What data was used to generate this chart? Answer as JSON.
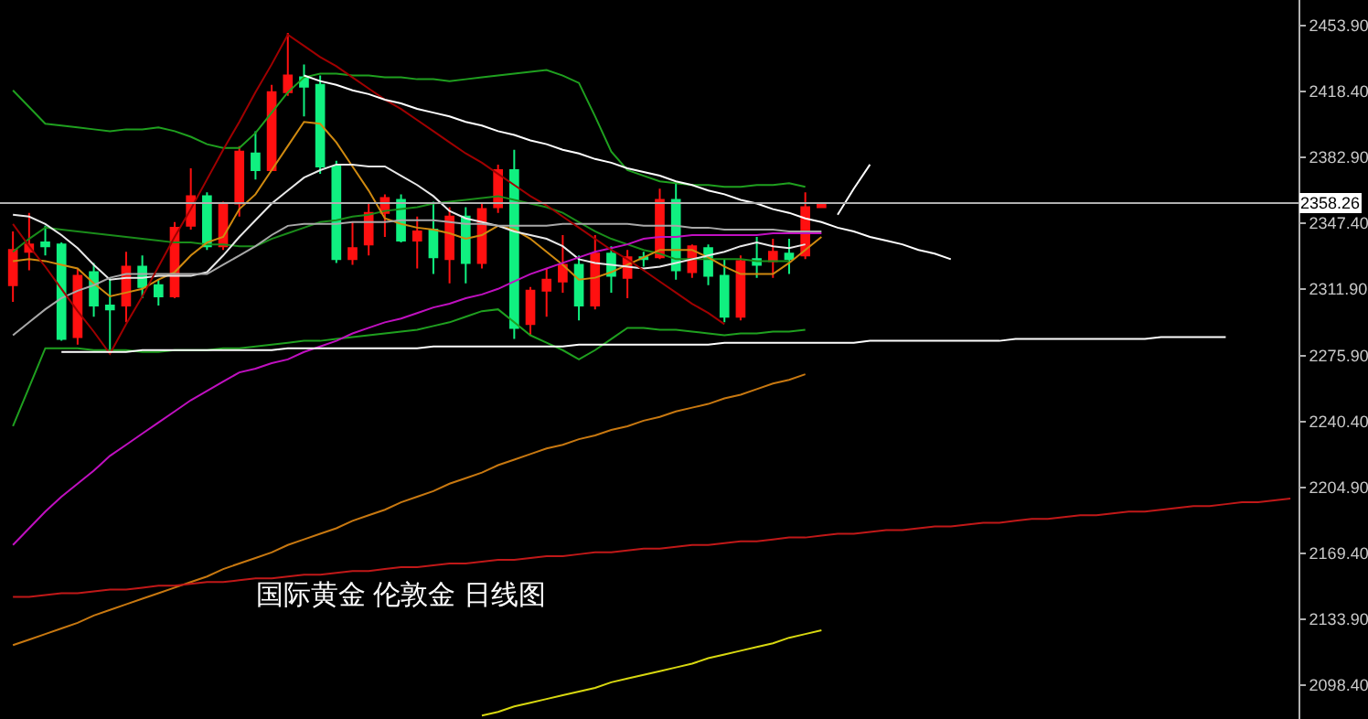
{
  "chart_data": {
    "type": "candlestick",
    "title": "国际黄金 伦敦金 日线图",
    "categories": [
      null,
      null,
      null,
      null,
      null,
      null,
      null,
      null,
      null,
      null,
      null,
      null,
      null,
      null,
      null,
      null,
      null,
      null,
      null,
      null,
      null,
      null,
      null,
      null,
      null,
      null,
      null,
      null,
      null,
      null,
      null,
      null,
      null,
      null,
      null,
      null,
      null,
      null,
      null,
      null,
      null,
      null,
      null,
      null,
      null,
      null,
      null,
      null,
      null,
      null,
      null,
      null,
      null,
      null,
      null,
      null,
      null,
      null,
      null,
      null,
      null,
      null,
      null,
      null,
      null,
      null,
      null,
      null,
      null,
      null,
      null,
      null,
      null,
      null,
      null,
      null,
      null,
      null,
      null,
      null
    ],
    "ohlc": [
      [
        2314,
        2343,
        2305,
        2333
      ],
      [
        2332,
        2353,
        2322,
        2336
      ],
      [
        2337,
        2346,
        2330,
        2335
      ],
      [
        2336,
        2337,
        2284,
        2285
      ],
      [
        2286,
        2323,
        2282,
        2319
      ],
      [
        2321,
        2326,
        2297,
        2303
      ],
      [
        2303,
        2318,
        2279,
        2301
      ],
      [
        2303,
        2332,
        2294,
        2324
      ],
      [
        2324,
        2330,
        2307,
        2313
      ],
      [
        2314,
        2317,
        2303,
        2308
      ],
      [
        2308,
        2348,
        2307,
        2345
      ],
      [
        2346,
        2377,
        2344,
        2362
      ],
      [
        2362,
        2364,
        2333,
        2335
      ],
      [
        2335,
        2359,
        2333,
        2358
      ],
      [
        2358,
        2389,
        2351,
        2386
      ],
      [
        2385,
        2397,
        2371,
        2376
      ],
      [
        2376,
        2422,
        2376,
        2418
      ],
      [
        2418,
        2450,
        2416,
        2427
      ],
      [
        2426,
        2433,
        2405,
        2421
      ],
      [
        2422,
        2427,
        2374,
        2378
      ],
      [
        2378,
        2381,
        2326,
        2328
      ],
      [
        2328,
        2348,
        2325,
        2334
      ],
      [
        2336,
        2358,
        2330,
        2353
      ],
      [
        2353,
        2363,
        2340,
        2361
      ],
      [
        2360,
        2363,
        2337,
        2338
      ],
      [
        2338,
        2351,
        2323,
        2343
      ],
      [
        2344,
        2359,
        2320,
        2329
      ],
      [
        2328,
        2356,
        2315,
        2351
      ],
      [
        2351,
        2356,
        2315,
        2326
      ],
      [
        2326,
        2358,
        2323,
        2355
      ],
      [
        2356,
        2379,
        2353,
        2376
      ],
      [
        2376,
        2387,
        2285,
        2291
      ],
      [
        2293,
        2313,
        2287,
        2311
      ],
      [
        2311,
        2323,
        2297,
        2317
      ],
      [
        2316,
        2341,
        2310,
        2325
      ],
      [
        2325,
        2330,
        2295,
        2303
      ],
      [
        2303,
        2341,
        2301,
        2331
      ],
      [
        2331,
        2335,
        2310,
        2319
      ],
      [
        2318,
        2333,
        2307,
        2329
      ],
      [
        2329,
        2332,
        2324,
        2328
      ],
      [
        2329,
        2366,
        2328,
        2360
      ],
      [
        2360,
        2369,
        2317,
        2322
      ],
      [
        2321,
        2336,
        2318,
        2335
      ],
      [
        2334,
        2336,
        2314,
        2319
      ],
      [
        2319,
        2328,
        2294,
        2297
      ],
      [
        2297,
        2330,
        2295,
        2327
      ],
      [
        2328,
        2340,
        2318,
        2325
      ],
      [
        2327,
        2339,
        2318,
        2332
      ],
      [
        2331,
        2339,
        2320,
        2328
      ],
      [
        2330,
        2364,
        2328,
        2356
      ],
      [
        2356,
        2358,
        2356,
        2358
      ],
      null,
      null,
      null,
      null,
      null,
      null,
      null,
      null,
      null,
      null,
      null,
      null,
      null,
      null,
      null,
      null,
      null,
      null,
      null,
      null,
      null,
      null,
      null,
      null,
      null,
      null,
      null,
      null,
      null
    ],
    "colors": [
      "#ff1010",
      "#ff1010",
      "#10f080",
      "#10f080",
      "#ff1010",
      "#10f080",
      "#10f080",
      "#ff1010",
      "#10f080",
      "#10f080",
      "#ff1010",
      "#ff1010",
      "#10f080",
      "#ff1010",
      "#ff1010",
      "#10f080",
      "#ff1010",
      "#ff1010",
      "#10f080",
      "#10f080",
      "#10f080",
      "#ff1010",
      "#ff1010",
      "#ff1010",
      "#10f080",
      "#ff1010",
      "#10f080",
      "#ff1010",
      "#10f080",
      "#ff1010",
      "#ff1010",
      "#10f080",
      "#ff1010",
      "#ff1010",
      "#ff1010",
      "#10f080",
      "#ff1010",
      "#10f080",
      "#ff1010",
      "#10f080",
      "#ff1010",
      "#10f080",
      "#ff1010",
      "#10f080",
      "#10f080",
      "#ff1010",
      "#10f080",
      "#ff1010",
      "#10f080",
      "#ff1010",
      "#ff1010",
      null,
      null,
      null,
      null,
      null,
      null,
      null,
      null,
      null,
      null,
      null,
      null,
      null,
      null,
      null,
      null,
      null,
      null,
      null,
      null,
      null,
      null,
      null,
      null,
      null,
      null,
      null,
      null,
      null
    ],
    "series": [
      {
        "type": "line",
        "color": "#1fa01f",
        "values": [
          2419,
          2410,
          2401,
          2400,
          2399,
          2398,
          2397,
          2398,
          2398,
          2399,
          2397,
          2394,
          2390,
          2388,
          2388,
          2396,
          2407,
          2418,
          2426,
          2428,
          2428,
          2427,
          2427,
          2426,
          2426,
          2425,
          2425,
          2424,
          2425,
          2426,
          2427,
          2428,
          2429,
          2430,
          2427,
          2423,
          2405,
          2386,
          2376,
          2373,
          2370,
          2369,
          2368,
          2368,
          2367,
          2367,
          2368,
          2368,
          2369,
          2367,
          null,
          null,
          null,
          null,
          null,
          null,
          null,
          null,
          null,
          null,
          null,
          null,
          null,
          null,
          null,
          null,
          null,
          null,
          null,
          null,
          null,
          null,
          null,
          null,
          null,
          null,
          null,
          null,
          null,
          null
        ]
      },
      {
        "type": "line",
        "color": "#1a8c1a",
        "values": [
          2332,
          2339,
          2345,
          2344,
          2343,
          2342,
          2341,
          2340,
          2339,
          2338,
          2337,
          2337,
          2336,
          2336,
          2335,
          2335,
          2339,
          2342,
          2345,
          2348,
          2349,
          2351,
          2352,
          2354,
          2355,
          2356,
          2358,
          2359,
          2360,
          2361,
          2362,
          2360,
          2358,
          2356,
          2353,
          2348,
          2343,
          2339,
          2336,
          2333,
          2331,
          2328,
          2328,
          2328,
          2328,
          2328,
          2327,
          2327,
          2327,
          null,
          null,
          null,
          null,
          null,
          null,
          null,
          null,
          null,
          null,
          null,
          null,
          null,
          null,
          null,
          null,
          null,
          null,
          null,
          null,
          null,
          null,
          null,
          null,
          null,
          null,
          null,
          null,
          null,
          null,
          null
        ]
      },
      {
        "type": "line",
        "color": "#1fa01f",
        "values": [
          2238,
          2259,
          2280,
          2280,
          2280,
          2279,
          2279,
          2279,
          2278,
          2278,
          2279,
          2279,
          2279,
          2280,
          2280,
          2281,
          2282,
          2283,
          2284,
          2284,
          2285,
          2286,
          2287,
          2288,
          2289,
          2290,
          2292,
          2294,
          2297,
          2300,
          2301,
          2294,
          2287,
          2283,
          2279,
          2274,
          2279,
          2285,
          2291,
          2291,
          2290,
          2290,
          2289,
          2288,
          2287,
          2288,
          2288,
          2289,
          2289,
          2290,
          null,
          null,
          null,
          null,
          null,
          null,
          null,
          null,
          null,
          null,
          null,
          null,
          null,
          null,
          null,
          null,
          null,
          null,
          null,
          null,
          null,
          null,
          null,
          null,
          null,
          null,
          null,
          null,
          null,
          null
        ]
      },
      {
        "type": "line",
        "color": "#d08a10",
        "values": [
          2327,
          2328,
          2327,
          2325,
          2323,
          2315,
          2308,
          2310,
          2312,
          2317,
          2321,
          2330,
          2337,
          2340,
          2355,
          2363,
          2376,
          2389,
          2402,
          2401,
          2391,
          2378,
          2365,
          2350,
          2347,
          2345,
          2344,
          2342,
          2339,
          2341,
          2346,
          2344,
          2339,
          2332,
          2325,
          2317,
          2318,
          2321,
          2325,
          2329,
          2333,
          2333,
          2333,
          2329,
          2324,
          2320,
          2320,
          2320,
          2326,
          2333,
          2340,
          null,
          null,
          null,
          null,
          null,
          null,
          null,
          null,
          null,
          null,
          null,
          null,
          null,
          null,
          null,
          null,
          null,
          null,
          null,
          null,
          null,
          null,
          null,
          null,
          null,
          null,
          null,
          null,
          null
        ]
      },
      {
        "type": "line",
        "color": "#e8e8e8",
        "values": [
          2352,
          2351,
          2347,
          2341,
          2334,
          2325,
          2317,
          2318,
          2318,
          2319,
          2319,
          2319,
          2321,
          2330,
          2340,
          2349,
          2358,
          2365,
          2372,
          2376,
          2379,
          2379,
          2378,
          2378,
          2373,
          2368,
          2362,
          2354,
          2350,
          2348,
          2346,
          2343,
          2341,
          2339,
          2335,
          2328,
          2326,
          2325,
          2324,
          2323,
          2324,
          2326,
          2328,
          2330,
          2332,
          2335,
          2337,
          2335,
          2334,
          2336,
          null,
          null,
          null,
          null,
          null,
          null,
          null,
          null,
          null,
          null,
          null,
          null,
          null,
          null,
          null,
          null,
          null,
          null,
          null,
          null,
          null,
          null,
          null,
          null,
          null,
          null,
          null,
          null,
          null,
          null
        ]
      },
      {
        "type": "line",
        "color": "#a8a8a8",
        "values": [
          2287,
          2294,
          2301,
          2307,
          2311,
          2314,
          2318,
          2320,
          2320,
          2320,
          2320,
          2320,
          2320,
          2325,
          2330,
          2335,
          2341,
          2346,
          2347,
          2347,
          2347,
          2348,
          2348,
          2348,
          2349,
          2349,
          2349,
          2348,
          2347,
          2347,
          2346,
          2346,
          2346,
          2346,
          2347,
          2347,
          2347,
          2347,
          2347,
          2346,
          2346,
          2346,
          2345,
          2345,
          2344,
          2344,
          2344,
          2344,
          2343,
          2343,
          2343,
          null,
          null,
          null,
          null,
          null,
          null,
          null,
          null,
          null,
          null,
          null,
          null,
          null,
          null,
          null,
          null,
          null,
          null,
          null,
          null,
          null,
          null,
          null,
          null,
          null,
          null,
          null,
          null,
          null
        ]
      },
      {
        "type": "line",
        "color": "#c010c0",
        "values": [
          2174,
          2183,
          2192,
          2200,
          2207,
          2214,
          2222,
          2228,
          2234,
          2240,
          2246,
          2252,
          2257,
          2262,
          2267,
          2269,
          2272,
          2274,
          2278,
          2281,
          2284,
          2288,
          2291,
          2294,
          2296,
          2299,
          2302,
          2304,
          2307,
          2309,
          2312,
          2316,
          2320,
          2323,
          2326,
          2329,
          2332,
          2334,
          2336,
          2339,
          2340,
          2340,
          2341,
          2341,
          2341,
          2341,
          2341,
          2342,
          2342,
          2342,
          2342,
          null,
          null,
          null,
          null,
          null,
          null,
          null,
          null,
          null,
          null,
          null,
          null,
          null,
          null,
          null,
          null,
          null,
          null,
          null,
          null,
          null,
          null,
          null,
          null,
          null,
          null,
          null,
          null,
          null
        ]
      },
      {
        "type": "line",
        "color": "#c87810",
        "values": [
          2120,
          2123,
          2126,
          2129,
          2132,
          2136,
          2139,
          2142,
          2145,
          2148,
          2151,
          2154,
          2157,
          2161,
          2164,
          2167,
          2170,
          2174,
          2177,
          2180,
          2183,
          2187,
          2190,
          2193,
          2197,
          2200,
          2203,
          2207,
          2210,
          2213,
          2217,
          2220,
          2223,
          2226,
          2228,
          2231,
          2233,
          2236,
          2238,
          2241,
          2243,
          2246,
          2248,
          2250,
          2253,
          2255,
          2258,
          2261,
          2263,
          2266,
          null,
          null,
          null,
          null,
          null,
          null,
          null,
          null,
          null,
          null,
          null,
          null,
          null,
          null,
          null,
          null,
          null,
          null,
          null,
          null,
          null,
          null,
          null,
          null,
          null,
          null,
          null,
          null,
          null,
          null
        ]
      },
      {
        "type": "line",
        "color": "#c01818",
        "values": [
          2146,
          2146,
          2147,
          2148,
          2148,
          2149,
          2150,
          2150,
          2151,
          2152,
          2152,
          2153,
          2154,
          2154,
          2155,
          2156,
          2156,
          2157,
          2158,
          2158,
          2159,
          2160,
          2160,
          2161,
          2162,
          2162,
          2163,
          2164,
          2164,
          2165,
          2166,
          2166,
          2167,
          2168,
          2168,
          2169,
          2170,
          2170,
          2171,
          2172,
          2172,
          2173,
          2174,
          2174,
          2175,
          2176,
          2176,
          2177,
          2178,
          2178,
          2179,
          2180,
          2180,
          2181,
          2182,
          2182,
          2183,
          2184,
          2184,
          2185,
          2186,
          2186,
          2187,
          2188,
          2188,
          2189,
          2190,
          2190,
          2191,
          2192,
          2192,
          2193,
          2194,
          2195,
          2195,
          2196,
          2197,
          2197,
          2198,
          2199
        ]
      },
      {
        "type": "line",
        "color": "#d8d810",
        "values": [
          null,
          null,
          null,
          null,
          null,
          null,
          null,
          null,
          null,
          null,
          null,
          null,
          null,
          null,
          null,
          null,
          null,
          null,
          null,
          null,
          null,
          null,
          null,
          null,
          null,
          null,
          null,
          null,
          null,
          2082,
          2084,
          2087,
          2089,
          2091,
          2093,
          2095,
          2097,
          2100,
          2102,
          2104,
          2106,
          2108,
          2110,
          2113,
          2115,
          2117,
          2119,
          2121,
          2124,
          2126,
          2128,
          null,
          null,
          null,
          null,
          null,
          null,
          null,
          null,
          null,
          null,
          null,
          null,
          null,
          null,
          null,
          null,
          null,
          null,
          null,
          null,
          null,
          null,
          null,
          null,
          null,
          null,
          null,
          null,
          null
        ]
      },
      {
        "type": "line",
        "color": "#a00000",
        "values": [
          2347,
          2335,
          2324,
          2312,
          2300,
          2289,
          2277,
          2293,
          2308,
          2324,
          2340,
          2355,
          2371,
          2387,
          2402,
          2418,
          2433,
          2449,
          2443,
          2437,
          2432,
          2426,
          2420,
          2414,
          2409,
          2403,
          2397,
          2391,
          2385,
          2380,
          2374,
          2368,
          2362,
          2357,
          2351,
          2345,
          2339,
          2333,
          2328,
          2322,
          2316,
          2310,
          2304,
          2299,
          2293,
          null,
          null,
          null,
          null,
          null,
          null,
          null,
          null,
          null,
          null,
          null,
          null,
          null,
          null,
          null,
          null,
          null,
          null,
          null,
          null,
          null,
          null,
          null,
          null,
          null,
          null,
          null,
          null,
          null,
          null,
          null,
          null,
          null,
          null,
          null
        ]
      },
      {
        "type": "line",
        "color": "#ffffff",
        "values": [
          null,
          null,
          null,
          null,
          null,
          null,
          null,
          null,
          null,
          null,
          null,
          null,
          null,
          null,
          null,
          null,
          null,
          null,
          2427,
          2424,
          2422,
          2419,
          2417,
          2414,
          2412,
          2409,
          2407,
          2405,
          2402,
          2400,
          2397,
          2395,
          2392,
          2390,
          2387,
          2385,
          2382,
          2380,
          2377,
          2375,
          2373,
          2370,
          2368,
          2365,
          2363,
          2360,
          2358,
          2355,
          2353,
          2350,
          2348,
          2345,
          2343,
          2340,
          2338,
          2336,
          2333,
          2331,
          2328,
          null,
          null,
          null,
          null,
          null,
          null,
          null,
          null,
          null,
          null,
          null,
          null,
          null,
          null,
          null,
          null,
          null,
          null,
          null,
          null,
          null
        ]
      },
      {
        "type": "line",
        "color": "#ffffff",
        "values": [
          null,
          null,
          null,
          2278,
          2278,
          2278,
          2278,
          2278,
          2279,
          2279,
          2279,
          2279,
          2279,
          2279,
          2279,
          2279,
          2279,
          2280,
          2280,
          2280,
          2280,
          2280,
          2280,
          2280,
          2280,
          2280,
          2281,
          2281,
          2281,
          2281,
          2281,
          2281,
          2281,
          2281,
          2281,
          2282,
          2282,
          2282,
          2282,
          2282,
          2282,
          2282,
          2282,
          2282,
          2283,
          2283,
          2283,
          2283,
          2283,
          2283,
          2283,
          2283,
          2283,
          2284,
          2284,
          2284,
          2284,
          2284,
          2284,
          2284,
          2284,
          2284,
          2285,
          2285,
          2285,
          2285,
          2285,
          2285,
          2285,
          2285,
          2285,
          2286,
          2286,
          2286,
          2286,
          2286,
          null,
          null,
          null,
          null
        ]
      },
      {
        "type": "line",
        "color": "#ffffff",
        "values": [
          null,
          null,
          null,
          null,
          null,
          null,
          null,
          null,
          null,
          null,
          null,
          null,
          null,
          null,
          null,
          null,
          null,
          null,
          null,
          null,
          null,
          null,
          null,
          null,
          null,
          null,
          null,
          null,
          null,
          null,
          null,
          null,
          null,
          null,
          null,
          null,
          null,
          null,
          null,
          null,
          null,
          null,
          null,
          null,
          null,
          null,
          null,
          null,
          null,
          null,
          null,
          2352,
          2366,
          2379,
          null,
          null,
          null,
          null,
          null,
          null,
          null,
          null,
          null,
          null,
          null,
          null,
          null,
          null,
          null,
          null,
          null,
          null,
          null,
          null,
          null,
          null,
          null,
          null,
          null,
          null
        ]
      }
    ],
    "ylim": [
      2080.2,
      2467.7
    ],
    "yticks": [
      {
        "value": 2453.9,
        "label": "2453.90"
      },
      {
        "value": 2418.4,
        "label": "2418.40"
      },
      {
        "value": 2382.9,
        "label": "2382.90"
      },
      {
        "value": 2347.4,
        "label": "2347.40"
      },
      {
        "value": 2311.9,
        "label": "2311.90"
      },
      {
        "value": 2275.9,
        "label": "2275.90"
      },
      {
        "value": 2240.4,
        "label": "2240.40"
      },
      {
        "value": 2204.9,
        "label": "2204.90"
      },
      {
        "value": 2169.4,
        "label": "2169.40"
      },
      {
        "value": 2133.9,
        "label": "2133.90"
      },
      {
        "value": 2098.4,
        "label": "2098.40"
      }
    ],
    "ref_lines": [
      {
        "axis": "y",
        "value": 2358.26,
        "label": "2358.26",
        "color": "#b0b0b0"
      }
    ],
    "tick_labels": "y",
    "grid": false
  }
}
